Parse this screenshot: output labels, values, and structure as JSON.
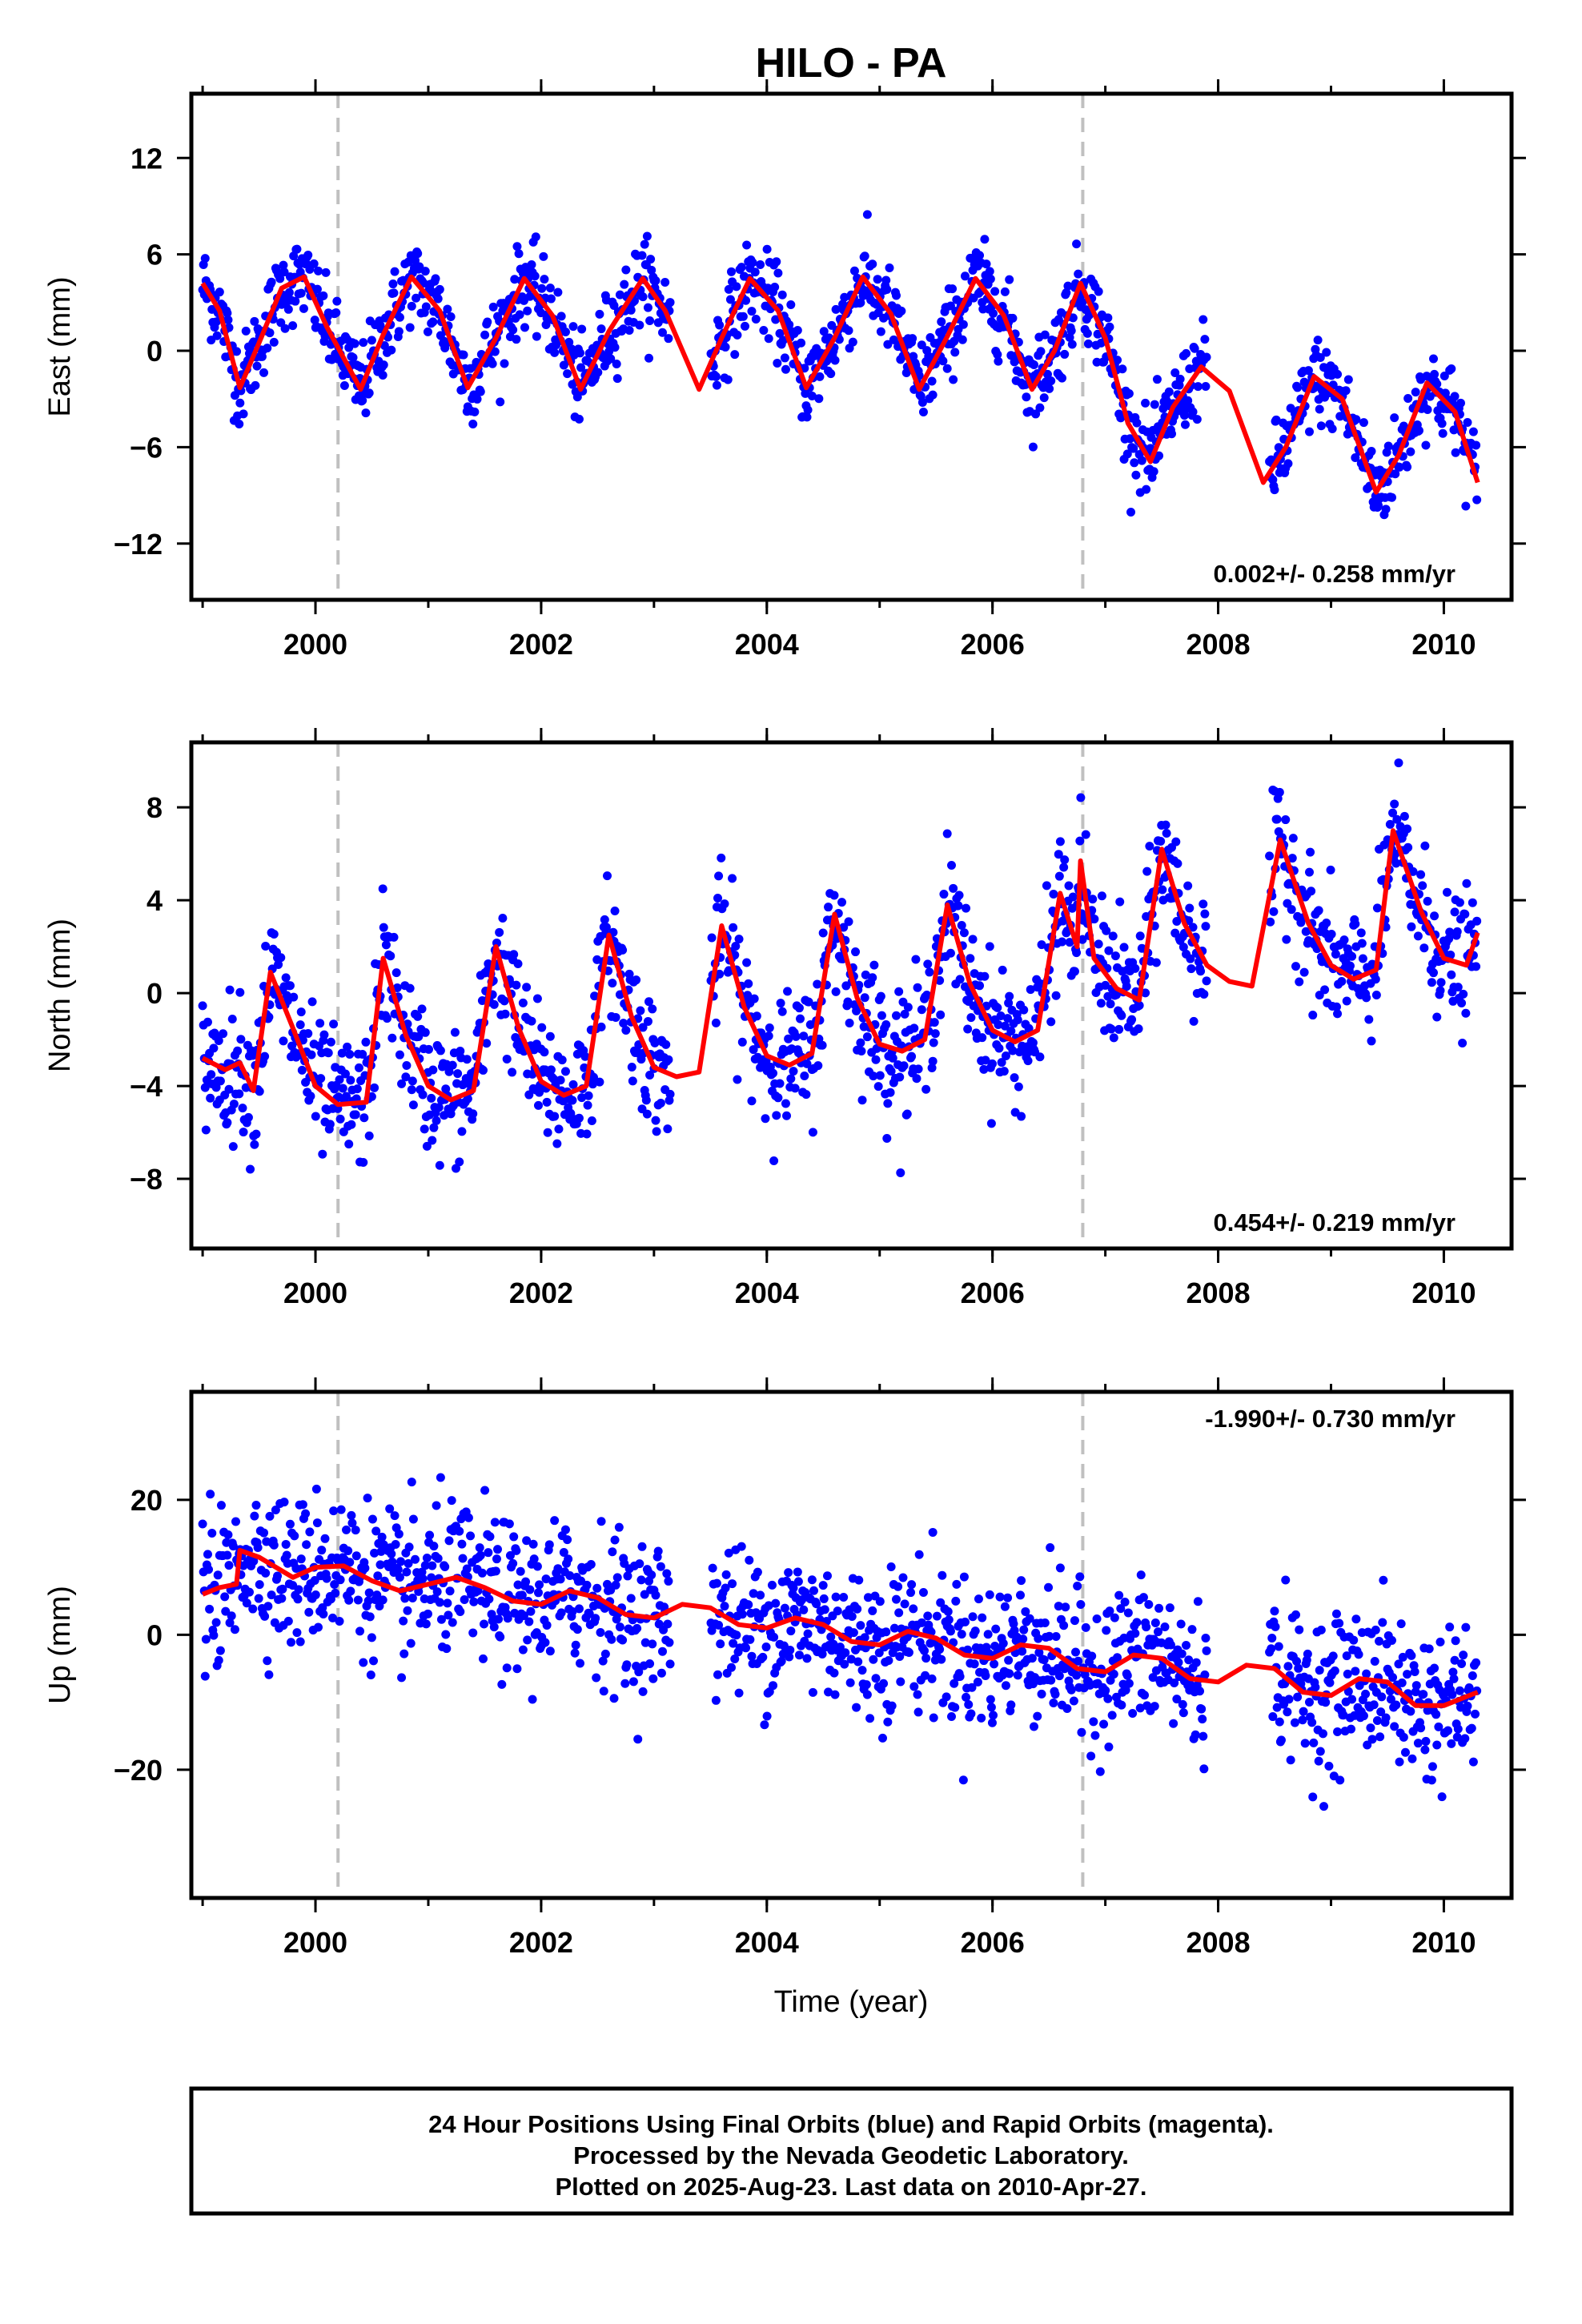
{
  "title": "HILO - PA",
  "xlabel": "Time (year)",
  "footer": {
    "lines": [
      "24 Hour Positions Using Final Orbits (blue) and Rapid Orbits (magenta).",
      "Processed by the Nevada Geodetic Laboratory.",
      "Plotted on 2025-Aug-23. Last data on 2010-Apr-27."
    ]
  },
  "colors": {
    "final_orbits": "#0000ff",
    "model_fit": "#ff0000",
    "event_lines": "#c0c0c0",
    "frame": "#000000"
  },
  "chart_data": [
    {
      "type": "scatter",
      "panel": "east",
      "ylabel": "East (mm)",
      "xlim": [
        1998.9,
        2010.6
      ],
      "ylim": [
        -15.5,
        16
      ],
      "yticks": [
        -12,
        -6,
        0,
        6,
        12
      ],
      "ytick_labels": [
        "−12",
        "−6",
        "0",
        "6",
        "12"
      ],
      "xticks": [
        2000,
        2002,
        2004,
        2006,
        2008,
        2010
      ],
      "xtick_labels": [
        "2000",
        "2002",
        "2004",
        "2006",
        "2008",
        "2010"
      ],
      "rate_text": "0.002+/- 0.258 mm/yr",
      "rate_position": "bottom-right",
      "event_lines_x": [
        2000.2,
        2006.8
      ],
      "fit": {
        "x": [
          1999.0,
          1999.15,
          1999.33,
          1999.5,
          1999.7,
          1999.9,
          2000.1,
          2000.4,
          2000.6,
          2000.85,
          2001.1,
          2001.35,
          2001.6,
          2001.85,
          2002.1,
          2002.35,
          2002.6,
          2002.9,
          2003.1,
          2003.4,
          2003.6,
          2003.85,
          2004.1,
          2004.35,
          2004.6,
          2004.85,
          2005.1,
          2005.35,
          2005.6,
          2005.85,
          2006.1,
          2006.35,
          2006.55,
          2006.78,
          2007.0,
          2007.2,
          2007.4,
          2007.6,
          2007.85,
          2008.1,
          2008.4,
          2008.6,
          2008.85,
          2009.1,
          2009.4,
          2009.6,
          2009.85,
          2010.1,
          2010.3
        ],
        "y": [
          4.2,
          2.5,
          -2.3,
          0.5,
          3.9,
          4.6,
          1.5,
          -2.4,
          1.0,
          4.6,
          2.5,
          -2.3,
          0.8,
          4.5,
          2.2,
          -2.4,
          1.2,
          4.5,
          2.5,
          -2.4,
          0.8,
          4.5,
          2.5,
          -2.3,
          0.8,
          4.6,
          2.3,
          -2.4,
          0.9,
          4.5,
          2.2,
          -2.4,
          0.0,
          4.2,
          0.8,
          -4.5,
          -6.9,
          -3.5,
          -1.0,
          -2.5,
          -8.2,
          -6.0,
          -1.6,
          -3.0,
          -8.8,
          -6.5,
          -2.0,
          -3.8,
          -8.2
        ]
      },
      "scatter_model": {
        "gaps": [
          [
            2003.15,
            2003.5
          ],
          [
            2007.9,
            2008.45
          ]
        ],
        "noise_sd_mm": 1.3,
        "offset_to_fit_mm": 0.0
      }
    },
    {
      "type": "scatter",
      "panel": "north",
      "ylabel": "North (mm)",
      "xlim": [
        1998.9,
        2010.6
      ],
      "ylim": [
        -11,
        10.8
      ],
      "yticks": [
        -8,
        -4,
        0,
        4,
        8
      ],
      "ytick_labels": [
        "−8",
        "−4",
        "0",
        "4",
        "8"
      ],
      "xticks": [
        2000,
        2002,
        2004,
        2006,
        2008,
        2010
      ],
      "xtick_labels": [
        "2000",
        "2002",
        "2004",
        "2006",
        "2008",
        "2010"
      ],
      "rate_text": "0.454+/- 0.219 mm/yr",
      "rate_position": "bottom-right",
      "event_lines_x": [
        2000.2,
        2006.8
      ],
      "fit": {
        "x": [
          1999.0,
          1999.2,
          1999.33,
          1999.45,
          1999.6,
          1999.8,
          2000.0,
          2000.2,
          2000.45,
          2000.6,
          2000.8,
          2001.0,
          2001.2,
          2001.4,
          2001.6,
          2001.8,
          2002.0,
          2002.2,
          2002.4,
          2002.6,
          2002.8,
          2003.0,
          2003.2,
          2003.4,
          2003.6,
          2003.8,
          2004.0,
          2004.2,
          2004.4,
          2004.6,
          2004.8,
          2005.0,
          2005.2,
          2005.4,
          2005.6,
          2005.8,
          2006.0,
          2006.2,
          2006.4,
          2006.6,
          2006.75,
          2006.78,
          2006.9,
          2007.1,
          2007.3,
          2007.5,
          2007.7,
          2007.9,
          2008.1,
          2008.3,
          2008.55,
          2008.8,
          2009.0,
          2009.2,
          2009.4,
          2009.55,
          2009.8,
          2010.0,
          2010.2,
          2010.3
        ],
        "y": [
          -2.8,
          -3.3,
          -3.0,
          -4.2,
          0.9,
          -1.5,
          -4.0,
          -4.8,
          -4.7,
          1.5,
          -1.8,
          -4.0,
          -4.6,
          -4.2,
          2.0,
          -1.5,
          -3.8,
          -4.4,
          -4.0,
          2.5,
          -1.0,
          -3.2,
          -3.6,
          -3.4,
          2.9,
          -0.6,
          -2.7,
          -3.1,
          -2.6,
          3.4,
          -0.2,
          -2.2,
          -2.5,
          -2.0,
          3.8,
          0.4,
          -1.6,
          -2.1,
          -1.6,
          4.3,
          2.0,
          5.7,
          1.5,
          0.2,
          -0.3,
          6.2,
          3.0,
          1.2,
          0.5,
          0.3,
          6.6,
          3.0,
          1.2,
          0.6,
          1.0,
          7.0,
          3.5,
          1.5,
          1.2,
          2.6
        ]
      },
      "scatter_model": {
        "gaps": [
          [
            2003.15,
            2003.5
          ],
          [
            2007.9,
            2008.45
          ]
        ],
        "noise_sd_mm": 1.4,
        "offset_to_fit_mm": 0.0
      }
    },
    {
      "type": "scatter",
      "panel": "up",
      "ylabel": "Up (mm)",
      "xlim": [
        1998.9,
        2010.6
      ],
      "ylim": [
        -39,
        36
      ],
      "yticks": [
        -20,
        0,
        20
      ],
      "ytick_labels": [
        "−20",
        "0",
        "20"
      ],
      "xticks": [
        2000,
        2002,
        2004,
        2006,
        2008,
        2010
      ],
      "xtick_labels": [
        "2000",
        "2002",
        "2004",
        "2006",
        "2008",
        "2010"
      ],
      "rate_text": "-1.990+/- 0.730 mm/yr",
      "rate_position": "top-right",
      "event_lines_x": [
        2000.2,
        2006.8
      ],
      "fit": {
        "x": [
          1999.0,
          1999.15,
          1999.3,
          1999.33,
          1999.5,
          1999.8,
          2000.0,
          2000.25,
          2000.5,
          2000.75,
          2001.0,
          2001.25,
          2001.5,
          2001.75,
          2002.0,
          2002.25,
          2002.5,
          2002.75,
          2003.0,
          2003.25,
          2003.5,
          2003.75,
          2004.0,
          2004.25,
          2004.5,
          2004.75,
          2005.0,
          2005.25,
          2005.5,
          2005.75,
          2006.0,
          2006.25,
          2006.5,
          2006.75,
          2007.0,
          2007.25,
          2007.5,
          2007.75,
          2008.0,
          2008.25,
          2008.5,
          2008.75,
          2009.0,
          2009.25,
          2009.5,
          2009.75,
          2010.0,
          2010.3
        ],
        "y": [
          6.0,
          7.0,
          7.5,
          12.5,
          11.5,
          8.5,
          10.0,
          10.2,
          8.0,
          6.5,
          7.5,
          8.5,
          7.0,
          5.0,
          4.5,
          6.5,
          5.5,
          3.0,
          2.5,
          4.5,
          4.0,
          1.5,
          1.0,
          2.5,
          1.5,
          -1.0,
          -1.5,
          0.5,
          -0.5,
          -3.0,
          -3.5,
          -1.5,
          -2.0,
          -5.0,
          -5.5,
          -3.0,
          -3.5,
          -6.5,
          -7.0,
          -4.5,
          -5.0,
          -8.5,
          -9.0,
          -6.5,
          -7.0,
          -10.5,
          -10.5,
          -8.5
        ]
      },
      "scatter_model": {
        "gaps": [
          [
            2003.15,
            2003.5
          ],
          [
            2007.9,
            2008.45
          ]
        ],
        "noise_sd_mm": 5.5,
        "offset_to_fit_mm": 0.0
      }
    }
  ]
}
